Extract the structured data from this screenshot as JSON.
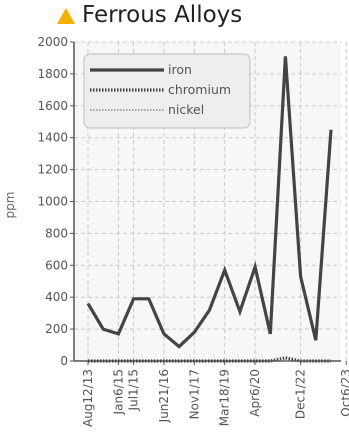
{
  "header": {
    "title": "Ferrous Alloys",
    "icon": "warning-triangle-icon",
    "icon_color": "#f2b200"
  },
  "chart_data": {
    "type": "line",
    "title": "Ferrous Alloys",
    "xlabel": "",
    "ylabel": "ppm",
    "ylim": [
      0,
      2000
    ],
    "yticks": [
      0,
      200,
      400,
      600,
      800,
      1000,
      1200,
      1400,
      1600,
      1800,
      2000
    ],
    "grid": true,
    "legend_position": "top-left",
    "x_tick_labels": [
      "Aug12/13",
      "Jan6/15",
      "Jul1/15",
      "Jun21/16",
      "Nov1/17",
      "Mar18/19",
      "Apr6/20",
      "Dec1/22",
      "Oct6/23"
    ],
    "x_tick_index": [
      0,
      2,
      3,
      5,
      7,
      9,
      11,
      14,
      17
    ],
    "series": [
      {
        "name": "iron",
        "color": "#444444",
        "style": "solid",
        "values": [
          360,
          200,
          170,
          390,
          390,
          170,
          90,
          180,
          320,
          570,
          310,
          590,
          170,
          1910,
          530,
          130,
          1450
        ]
      },
      {
        "name": "chromium",
        "color": "#444444",
        "style": "dotted",
        "values": [
          0,
          0,
          0,
          0,
          0,
          0,
          0,
          0,
          0,
          0,
          0,
          0,
          0,
          20,
          0,
          0,
          0
        ]
      },
      {
        "name": "nickel",
        "color": "#888888",
        "style": "thin-dotted",
        "values": [
          0,
          0,
          0,
          0,
          0,
          0,
          0,
          0,
          0,
          0,
          0,
          0,
          0,
          0,
          0,
          0,
          0
        ]
      }
    ]
  }
}
